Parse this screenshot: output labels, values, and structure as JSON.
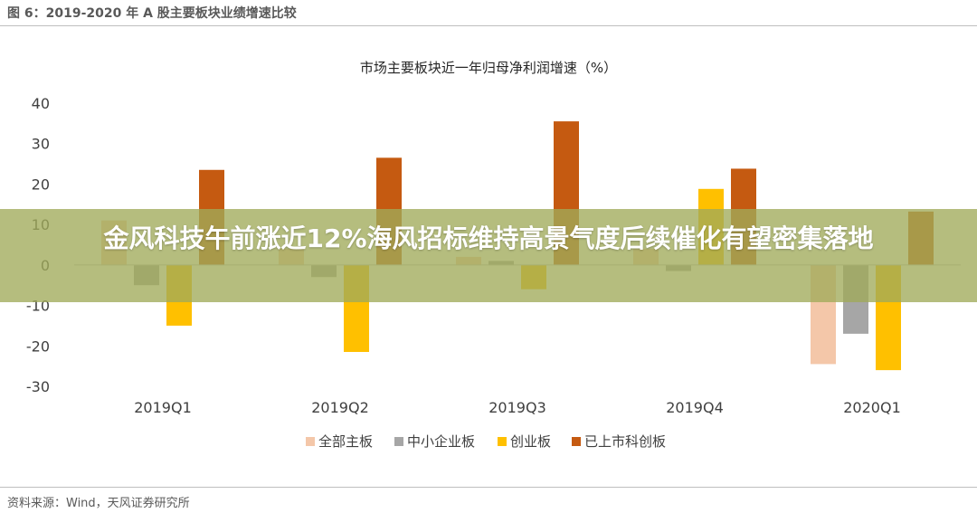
{
  "figure_title": "图 6：2019-2020 年 A 股主要板块业绩增速比较",
  "source": "资料来源：Wind，天风证券研究所",
  "overlay_headline": "金风科技午前涨近12%海风招标维持高景气度后续催化有望密集落地",
  "colors": {
    "series": [
      "#f4c7a9",
      "#a6a6a6",
      "#ffc000",
      "#c55a11"
    ],
    "axis": "#bfbfbf",
    "text": "#404040"
  },
  "chart_data": {
    "type": "bar",
    "title": "市场主要板块近一年归母净利润增速（%）",
    "xlabel": "",
    "ylabel": "",
    "ylim": [
      -30,
      40
    ],
    "yticks": [
      40,
      30,
      20,
      10,
      0,
      -10,
      -20,
      -30
    ],
    "grid": false,
    "legend_position": "bottom",
    "categories": [
      "2019Q1",
      "2019Q2",
      "2019Q3",
      "2019Q4",
      "2020Q1"
    ],
    "series": [
      {
        "name": "全部主板",
        "values": [
          11,
          4,
          2,
          4,
          -24.5
        ]
      },
      {
        "name": "中小企业板",
        "values": [
          -5,
          -3,
          1,
          -1.5,
          -17
        ]
      },
      {
        "name": "创业板",
        "values": [
          -15,
          -21.5,
          -6,
          18.8,
          -26
        ]
      },
      {
        "name": "已上市科创板",
        "values": [
          23.5,
          26.5,
          35.5,
          23.8,
          13.2
        ]
      }
    ]
  }
}
